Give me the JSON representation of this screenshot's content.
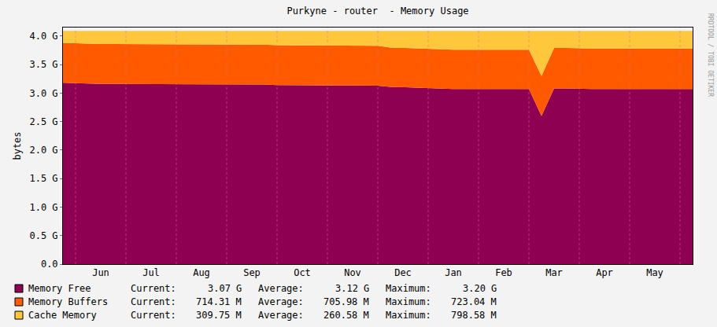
{
  "chart_data": {
    "type": "area",
    "stacked": true,
    "title": "Purkyne - router  - Memory Usage",
    "y_label": "bytes",
    "annotations": [
      {
        "text": "RRDTOOL / TOBI OETIKER"
      }
    ],
    "categories": [
      null,
      null,
      null,
      "Jun",
      null,
      null,
      null,
      "Jul",
      null,
      null,
      null,
      "Aug",
      null,
      null,
      null,
      "Sep",
      null,
      null,
      null,
      "Oct",
      null,
      null,
      null,
      "Nov",
      null,
      null,
      null,
      "Dec",
      null,
      null,
      null,
      "Jan",
      null,
      null,
      null,
      "Feb",
      null,
      null,
      null,
      "Mar",
      null,
      null,
      null,
      "Apr",
      null,
      null,
      null,
      "May",
      null,
      null,
      null
    ],
    "ylim": [
      0,
      4.15
    ],
    "yticks": [
      {
        "value": 0,
        "label": "0.0"
      },
      {
        "value": 0.5,
        "label": "0.5 G"
      },
      {
        "value": 1,
        "label": "1.0 G"
      },
      {
        "value": 1.5,
        "label": "1.5 G"
      },
      {
        "value": 2,
        "label": "2.0 G"
      },
      {
        "value": 2.5,
        "label": "2.5 G"
      },
      {
        "value": 3,
        "label": "3.0 G"
      },
      {
        "value": 3.5,
        "label": "3.5 G"
      },
      {
        "value": 4,
        "label": "4.0 G"
      }
    ],
    "grid": true,
    "legend_columns": [
      "Current:",
      "Average:",
      "Maximum:"
    ],
    "series": [
      {
        "name": "Memory Free",
        "color": "#8e0052",
        "stats": [
          "3.07 G",
          "3.12 G",
          "3.20 G"
        ],
        "values": [
          3.18,
          3.17,
          3.17,
          3.16,
          3.16,
          3.16,
          3.16,
          3.16,
          3.15,
          3.15,
          3.15,
          3.15,
          3.15,
          3.15,
          3.15,
          3.15,
          3.15,
          3.14,
          3.14,
          3.14,
          3.14,
          3.14,
          3.14,
          3.14,
          3.14,
          3.13,
          3.11,
          3.1,
          3.09,
          3.08,
          3.07,
          3.07,
          3.07,
          3.07,
          3.07,
          3.07,
          3.07,
          3.07,
          2.6,
          3.08,
          3.08,
          3.07,
          3.07,
          3.07,
          3.07,
          3.07,
          3.07,
          3.07,
          3.07,
          3.07,
          3.07
        ]
      },
      {
        "name": "Memory Buffers",
        "color": "#ff5a00",
        "stats": [
          "714.31 M",
          "705.98 M",
          "723.04 M"
        ],
        "values": [
          0.7,
          0.7,
          0.7,
          0.7,
          0.7,
          0.7,
          0.7,
          0.7,
          0.7,
          0.7,
          0.7,
          0.7,
          0.7,
          0.7,
          0.7,
          0.7,
          0.7,
          0.7,
          0.7,
          0.7,
          0.7,
          0.7,
          0.7,
          0.7,
          0.7,
          0.7,
          0.69,
          0.69,
          0.69,
          0.69,
          0.69,
          0.69,
          0.69,
          0.69,
          0.69,
          0.69,
          0.69,
          0.69,
          0.7,
          0.71,
          0.71,
          0.71,
          0.71,
          0.71,
          0.71,
          0.71,
          0.71,
          0.71,
          0.71,
          0.71,
          0.71
        ]
      },
      {
        "name": "Cache Memory",
        "color": "#ffc73b",
        "stats": [
          "309.75 M",
          "260.58 M",
          "798.58 M"
        ],
        "values": [
          0.21,
          0.22,
          0.22,
          0.23,
          0.23,
          0.23,
          0.23,
          0.23,
          0.24,
          0.24,
          0.24,
          0.24,
          0.24,
          0.24,
          0.24,
          0.24,
          0.24,
          0.25,
          0.25,
          0.25,
          0.25,
          0.25,
          0.25,
          0.25,
          0.25,
          0.26,
          0.29,
          0.3,
          0.31,
          0.32,
          0.33,
          0.33,
          0.33,
          0.33,
          0.33,
          0.33,
          0.33,
          0.33,
          0.79,
          0.3,
          0.3,
          0.31,
          0.31,
          0.31,
          0.31,
          0.31,
          0.31,
          0.31,
          0.31,
          0.31,
          0.31
        ]
      }
    ]
  }
}
